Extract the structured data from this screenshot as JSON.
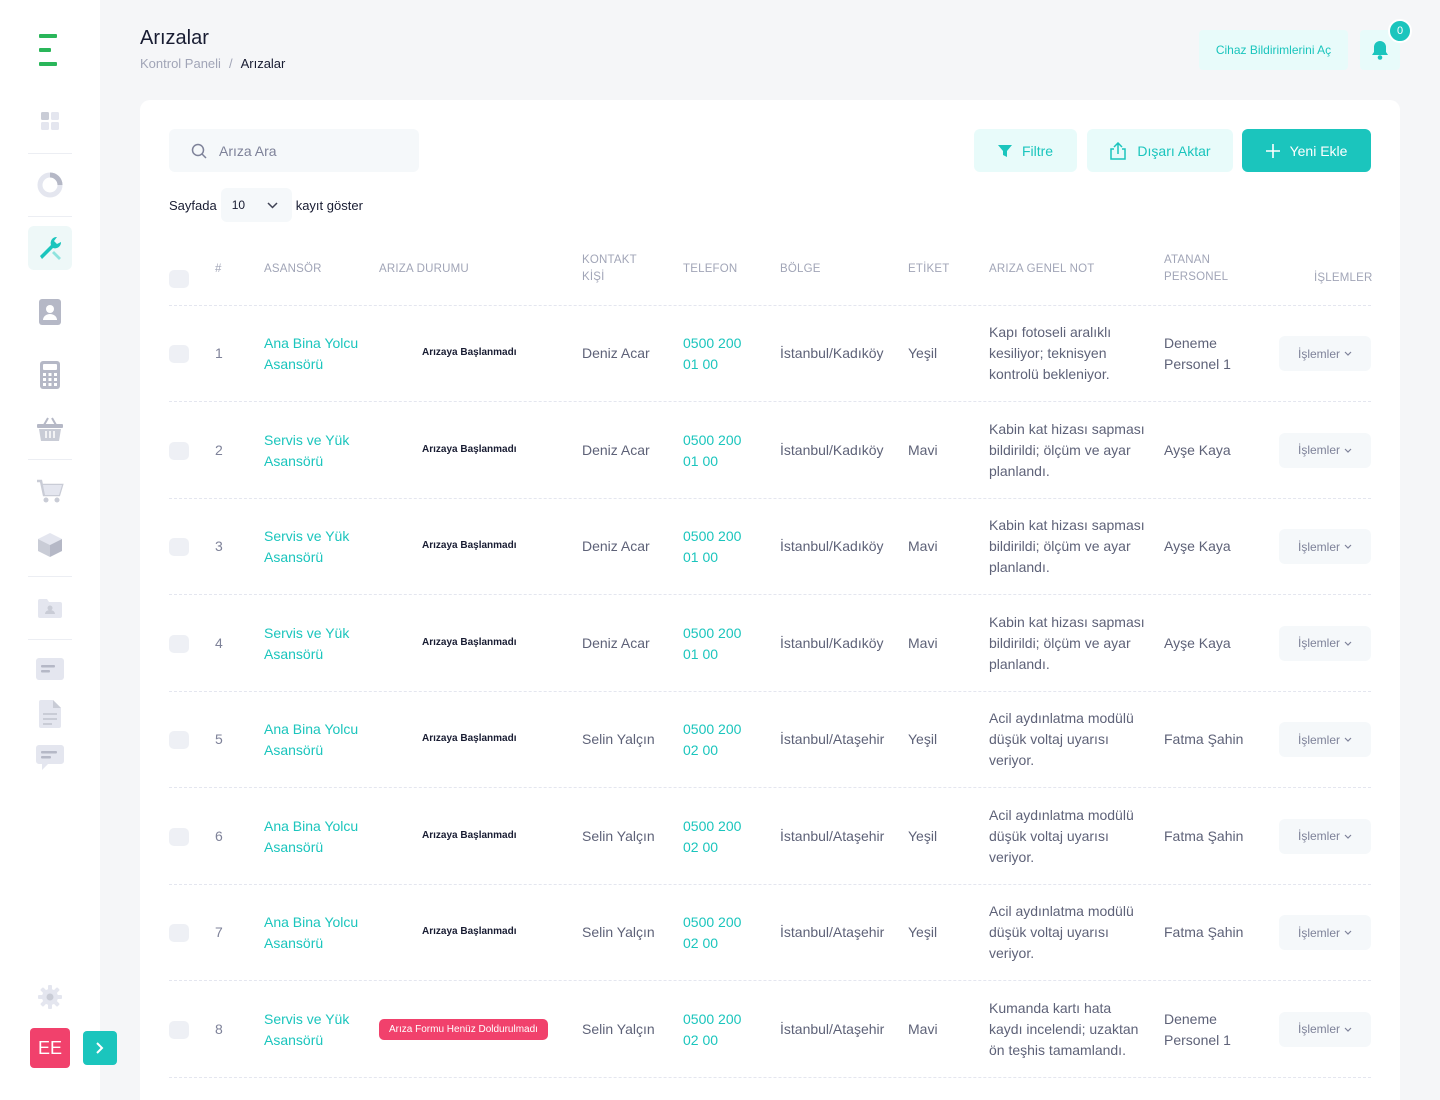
{
  "sidebar": {
    "avatar_initials": "EE",
    "items": [
      {
        "name": "dashboard-icon"
      },
      {
        "name": "chart-icon"
      },
      {
        "name": "wrench-icon",
        "active": true
      },
      {
        "name": "contact-icon"
      },
      {
        "name": "calculator-icon"
      },
      {
        "name": "basket-icon"
      },
      {
        "name": "cart-icon"
      },
      {
        "name": "box-icon"
      },
      {
        "name": "folder-icon"
      },
      {
        "name": "message-icon"
      },
      {
        "name": "document-icon"
      },
      {
        "name": "chat-icon"
      },
      {
        "name": "gear-icon"
      }
    ]
  },
  "header": {
    "title": "Arızalar",
    "breadcrumb": {
      "home": "Kontrol Paneli",
      "sep": "/",
      "current": "Arızalar"
    },
    "notif_button": "Cihaz Bildirimlerini Aç",
    "notif_count": "0"
  },
  "toolbar": {
    "search_placeholder": "Arıza Ara",
    "filter": "Filtre",
    "export": "Dışarı Aktar",
    "add": "Yeni Ekle"
  },
  "page_size": {
    "before": "Sayfada",
    "value": "10",
    "after": "kayıt göster"
  },
  "table": {
    "columns": {
      "num": "#",
      "elevator": "ASANSÖR",
      "status": "ARIZA DURUMU",
      "contact_1": "KONTAKT",
      "contact_2": "KİŞİ",
      "phone": "TELEFON",
      "region": "BÖLGE",
      "tag": "ETİKET",
      "note": "ARIZA GENEL NOT",
      "staff_1": "ATANAN",
      "staff_2": "PERSONEL",
      "actions": "İŞLEMLER"
    },
    "action_label": "İşlemler",
    "rows": [
      {
        "num": "1",
        "elevator_1": "Ana Bina Yolcu",
        "elevator_2": "Asansörü",
        "status": "Arızaya Başlanmadı",
        "badge": false,
        "contact": "Deniz Acar",
        "phone_1": "0500 200",
        "phone_2": "01 00",
        "region": "İstanbul/Kadıköy",
        "tag": "Yeşil",
        "note_1": "Kapı fotoseli aralıklı",
        "note_2": "kesiliyor; teknisyen",
        "note_3": "kontrolü bekleniyor.",
        "staff_1": "Deneme",
        "staff_2": "Personel 1"
      },
      {
        "num": "2",
        "elevator_1": "Servis ve Yük",
        "elevator_2": "Asansörü",
        "status": "Arızaya Başlanmadı",
        "badge": false,
        "contact": "Deniz Acar",
        "phone_1": "0500 200",
        "phone_2": "01 00",
        "region": "İstanbul/Kadıköy",
        "tag": "Mavi",
        "note_1": "Kabin kat hizası sapması",
        "note_2": "bildirildi; ölçüm ve ayar",
        "note_3": "planlandı.",
        "staff_1": "Ayşe Kaya",
        "staff_2": ""
      },
      {
        "num": "3",
        "elevator_1": "Servis ve Yük",
        "elevator_2": "Asansörü",
        "status": "Arızaya Başlanmadı",
        "badge": false,
        "contact": "Deniz Acar",
        "phone_1": "0500 200",
        "phone_2": "01 00",
        "region": "İstanbul/Kadıköy",
        "tag": "Mavi",
        "note_1": "Kabin kat hizası sapması",
        "note_2": "bildirildi; ölçüm ve ayar",
        "note_3": "planlandı.",
        "staff_1": "Ayşe Kaya",
        "staff_2": ""
      },
      {
        "num": "4",
        "elevator_1": "Servis ve Yük",
        "elevator_2": "Asansörü",
        "status": "Arızaya Başlanmadı",
        "badge": false,
        "contact": "Deniz Acar",
        "phone_1": "0500 200",
        "phone_2": "01 00",
        "region": "İstanbul/Kadıköy",
        "tag": "Mavi",
        "note_1": "Kabin kat hizası sapması",
        "note_2": "bildirildi; ölçüm ve ayar",
        "note_3": "planlandı.",
        "staff_1": "Ayşe Kaya",
        "staff_2": ""
      },
      {
        "num": "5",
        "elevator_1": "Ana Bina Yolcu",
        "elevator_2": "Asansörü",
        "status": "Arızaya Başlanmadı",
        "badge": false,
        "contact": "Selin Yalçın",
        "phone_1": "0500 200",
        "phone_2": "02 00",
        "region": "İstanbul/Ataşehir",
        "tag": "Yeşil",
        "note_1": "Acil aydınlatma modülü",
        "note_2": "düşük voltaj uyarısı",
        "note_3": "veriyor.",
        "staff_1": "Fatma Şahin",
        "staff_2": ""
      },
      {
        "num": "6",
        "elevator_1": "Ana Bina Yolcu",
        "elevator_2": "Asansörü",
        "status": "Arızaya Başlanmadı",
        "badge": false,
        "contact": "Selin Yalçın",
        "phone_1": "0500 200",
        "phone_2": "02 00",
        "region": "İstanbul/Ataşehir",
        "tag": "Yeşil",
        "note_1": "Acil aydınlatma modülü",
        "note_2": "düşük voltaj uyarısı",
        "note_3": "veriyor.",
        "staff_1": "Fatma Şahin",
        "staff_2": ""
      },
      {
        "num": "7",
        "elevator_1": "Ana Bina Yolcu",
        "elevator_2": "Asansörü",
        "status": "Arızaya Başlanmadı",
        "badge": false,
        "contact": "Selin Yalçın",
        "phone_1": "0500 200",
        "phone_2": "02 00",
        "region": "İstanbul/Ataşehir",
        "tag": "Yeşil",
        "note_1": "Acil aydınlatma modülü",
        "note_2": "düşük voltaj uyarısı",
        "note_3": "veriyor.",
        "staff_1": "Fatma Şahin",
        "staff_2": ""
      },
      {
        "num": "8",
        "elevator_1": "Servis ve Yük",
        "elevator_2": "Asansörü",
        "status": "Arıza Formu Henüz Doldurulmadı",
        "badge": true,
        "contact": "Selin Yalçın",
        "phone_1": "0500 200",
        "phone_2": "02 00",
        "region": "İstanbul/Ataşehir",
        "tag": "Mavi",
        "note_1": "Kumanda kartı hata",
        "note_2": "kaydı incelendi; uzaktan",
        "note_3": "ön teşhis tamamlandı.",
        "staff_1": "Deneme",
        "staff_2": "Personel 1"
      }
    ]
  },
  "colors": {
    "accent": "#1bc5bd",
    "danger": "#f1416c",
    "logo": "#2ab65a"
  }
}
